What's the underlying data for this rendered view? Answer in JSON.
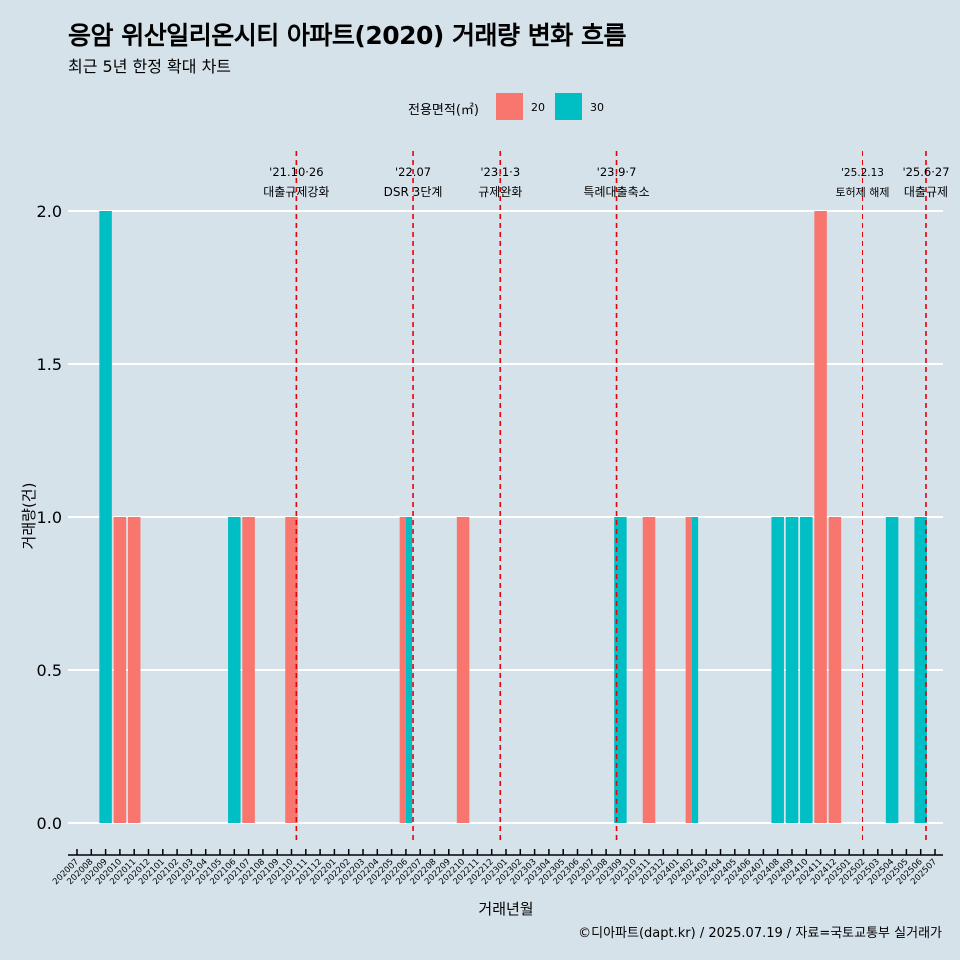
{
  "title": "응암 위산일리온시티 아파트(2020) 거래량 변화 흐름",
  "subtitle": "최근 5년 한정 확대 차트",
  "caption": "©디아파트(dapt.kr) / 2025.07.19 / 자료=국토교통부 실거래가",
  "legend": {
    "title": "전용면적(㎡)",
    "items": [
      {
        "label": "20",
        "color": "#F8766D"
      },
      {
        "label": "30",
        "color": "#00BFC4"
      }
    ]
  },
  "chart_data": {
    "type": "bar",
    "xlabel": "거래년월",
    "ylabel": "거래량(건)",
    "ylim": [
      0,
      2
    ],
    "yticks": [
      "0.0",
      "0.5",
      "1.0",
      "1.5",
      "2.0"
    ],
    "background": "#d6e2ea",
    "categories": [
      "202007",
      "202008",
      "202009",
      "202010",
      "202011",
      "202012",
      "202101",
      "202102",
      "202103",
      "202104",
      "202105",
      "202106",
      "202107",
      "202108",
      "202109",
      "202110",
      "202111",
      "202112",
      "202201",
      "202202",
      "202203",
      "202204",
      "202205",
      "202206",
      "202207",
      "202208",
      "202209",
      "202210",
      "202211",
      "202212",
      "202301",
      "202302",
      "202303",
      "202304",
      "202305",
      "202306",
      "202307",
      "202308",
      "202309",
      "202310",
      "202311",
      "202312",
      "202401",
      "202402",
      "202403",
      "202404",
      "202405",
      "202406",
      "202407",
      "202408",
      "202409",
      "202410",
      "202411",
      "202412",
      "202501",
      "202502",
      "202503",
      "202504",
      "202505",
      "202506",
      "202507"
    ],
    "series": [
      {
        "name": "20",
        "color": "#F8766D",
        "data": [
          {
            "x": "202010",
            "y": 1
          },
          {
            "x": "202011",
            "y": 1
          },
          {
            "x": "202107",
            "y": 1
          },
          {
            "x": "202110",
            "y": 1
          },
          {
            "x": "202206",
            "y": 1
          },
          {
            "x": "202210",
            "y": 1
          },
          {
            "x": "202311",
            "y": 1
          },
          {
            "x": "202402",
            "y": 1
          },
          {
            "x": "202411",
            "y": 2
          },
          {
            "x": "202412",
            "y": 1
          }
        ]
      },
      {
        "name": "30",
        "color": "#00BFC4",
        "data": [
          {
            "x": "202009",
            "y": 2
          },
          {
            "x": "202106",
            "y": 1
          },
          {
            "x": "202206",
            "y": 1
          },
          {
            "x": "202309",
            "y": 1
          },
          {
            "x": "202402",
            "y": 1
          },
          {
            "x": "202408",
            "y": 1
          },
          {
            "x": "202409",
            "y": 1
          },
          {
            "x": "202410",
            "y": 1
          },
          {
            "x": "202504",
            "y": 1
          },
          {
            "x": "202506",
            "y": 1
          }
        ]
      }
    ],
    "events": [
      {
        "month": "202110",
        "day_frac": 0.84,
        "line1": "'21.10·26",
        "line2": "대출규제강화",
        "color": "#e8000b",
        "dashed": true,
        "small": false
      },
      {
        "month": "202207",
        "day_frac": 0.0,
        "line1": "'22.07",
        "line2": "DSR 3단계",
        "color": "#e8000b",
        "dashed": true,
        "small": false
      },
      {
        "month": "202301",
        "day_frac": 0.1,
        "line1": "'23.1·3",
        "line2": "규제완화",
        "color": "#e8000b",
        "dashed": true,
        "small": false
      },
      {
        "month": "202309",
        "day_frac": 0.23,
        "line1": "'23.9·7",
        "line2": "특례대출축소",
        "color": "#e8000b",
        "dashed": true,
        "small": false
      },
      {
        "month": "202502",
        "day_frac": 0.43,
        "line1": "'25.2.13",
        "line2": "토허제 해제",
        "color": "#e8000b",
        "dashed": true,
        "small": true
      },
      {
        "month": "202506",
        "day_frac": 0.87,
        "line1": "'25.6·27",
        "line2": "대출규제",
        "color": "#e8000b",
        "dashed": true,
        "small": false
      }
    ]
  }
}
